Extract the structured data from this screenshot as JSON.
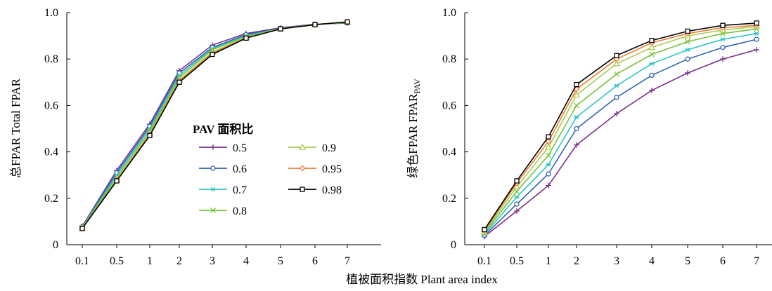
{
  "xlabel": "植被面积指数 Plant area index",
  "legend": {
    "title": "PAV 面积比",
    "entries": [
      {
        "label": "0.5",
        "color": "#7B2E8E",
        "marker": "plus"
      },
      {
        "label": "0.6",
        "color": "#2F63B0",
        "marker": "circle"
      },
      {
        "label": "0.7",
        "color": "#2EC4C4",
        "marker": "asterisk"
      },
      {
        "label": "0.8",
        "color": "#78C23B",
        "marker": "x"
      },
      {
        "label": "0.9",
        "color": "#A6CC4E",
        "marker": "triangle"
      },
      {
        "label": "0.95",
        "color": "#F07D33",
        "marker": "diamond"
      },
      {
        "label": "0.98",
        "color": "#000000",
        "marker": "square"
      }
    ]
  },
  "chart_data": [
    {
      "type": "line",
      "panel": "left",
      "ylabel": "总FPAR Total FPAR",
      "categories": [
        "0.1",
        "0.5",
        "1",
        "2",
        "3",
        "4",
        "5",
        "6",
        "7"
      ],
      "ylim": [
        0,
        1.0
      ],
      "yticks": [
        "0",
        "0.2",
        "0.4",
        "0.6",
        "0.8",
        "1.0"
      ],
      "grid": false,
      "legend_position": "center",
      "series": [
        {
          "name": "0.5",
          "values": [
            0.08,
            0.32,
            0.52,
            0.75,
            0.86,
            0.91,
            0.935,
            0.95,
            0.955
          ]
        },
        {
          "name": "0.6",
          "values": [
            0.078,
            0.31,
            0.51,
            0.74,
            0.85,
            0.905,
            0.933,
            0.95,
            0.956
          ]
        },
        {
          "name": "0.7",
          "values": [
            0.076,
            0.3,
            0.5,
            0.73,
            0.845,
            0.9,
            0.932,
            0.949,
            0.957
          ]
        },
        {
          "name": "0.8",
          "values": [
            0.074,
            0.29,
            0.49,
            0.72,
            0.84,
            0.897,
            0.931,
            0.949,
            0.958
          ]
        },
        {
          "name": "0.9",
          "values": [
            0.072,
            0.28,
            0.48,
            0.71,
            0.83,
            0.893,
            0.93,
            0.948,
            0.959
          ]
        },
        {
          "name": "0.95",
          "values": [
            0.071,
            0.277,
            0.474,
            0.705,
            0.825,
            0.891,
            0.93,
            0.948,
            0.96
          ]
        },
        {
          "name": "0.98",
          "values": [
            0.07,
            0.275,
            0.47,
            0.7,
            0.82,
            0.89,
            0.93,
            0.948,
            0.96
          ]
        }
      ]
    },
    {
      "type": "line",
      "panel": "right",
      "ylabel": "绿色FPAR  FPAR",
      "ylabel_sub": "PAV",
      "categories": [
        "0.1",
        "0.5",
        "1",
        "2",
        "3",
        "4",
        "5",
        "6",
        "7"
      ],
      "ylim": [
        0,
        1.0
      ],
      "yticks": [
        "0",
        "0.2",
        "0.4",
        "0.6",
        "0.8",
        "1.0"
      ],
      "grid": false,
      "series": [
        {
          "name": "0.5",
          "values": [
            0.035,
            0.145,
            0.255,
            0.43,
            0.565,
            0.665,
            0.74,
            0.8,
            0.84
          ]
        },
        {
          "name": "0.6",
          "values": [
            0.04,
            0.175,
            0.305,
            0.5,
            0.635,
            0.73,
            0.8,
            0.85,
            0.885
          ]
        },
        {
          "name": "0.7",
          "values": [
            0.045,
            0.205,
            0.345,
            0.55,
            0.685,
            0.78,
            0.84,
            0.885,
            0.91
          ]
        },
        {
          "name": "0.8",
          "values": [
            0.05,
            0.23,
            0.385,
            0.6,
            0.735,
            0.82,
            0.875,
            0.91,
            0.93
          ]
        },
        {
          "name": "0.9",
          "values": [
            0.055,
            0.25,
            0.42,
            0.645,
            0.78,
            0.85,
            0.9,
            0.925,
            0.94
          ]
        },
        {
          "name": "0.95",
          "values": [
            0.06,
            0.265,
            0.445,
            0.67,
            0.8,
            0.87,
            0.91,
            0.935,
            0.945
          ]
        },
        {
          "name": "0.98",
          "values": [
            0.065,
            0.275,
            0.465,
            0.69,
            0.815,
            0.88,
            0.92,
            0.945,
            0.955
          ]
        }
      ]
    }
  ]
}
